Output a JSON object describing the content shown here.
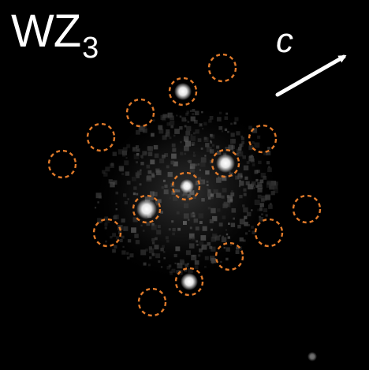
{
  "panel_label": {
    "main": "WZ",
    "subscript": "3"
  },
  "axis_label": "c",
  "colors": {
    "background": "#000000",
    "text": "#ffffff",
    "arrow": "#ffffff",
    "marker_circle": "#e07a2a",
    "bright_spot": "#ffffff"
  },
  "marker_style": "dashed-circle"
}
